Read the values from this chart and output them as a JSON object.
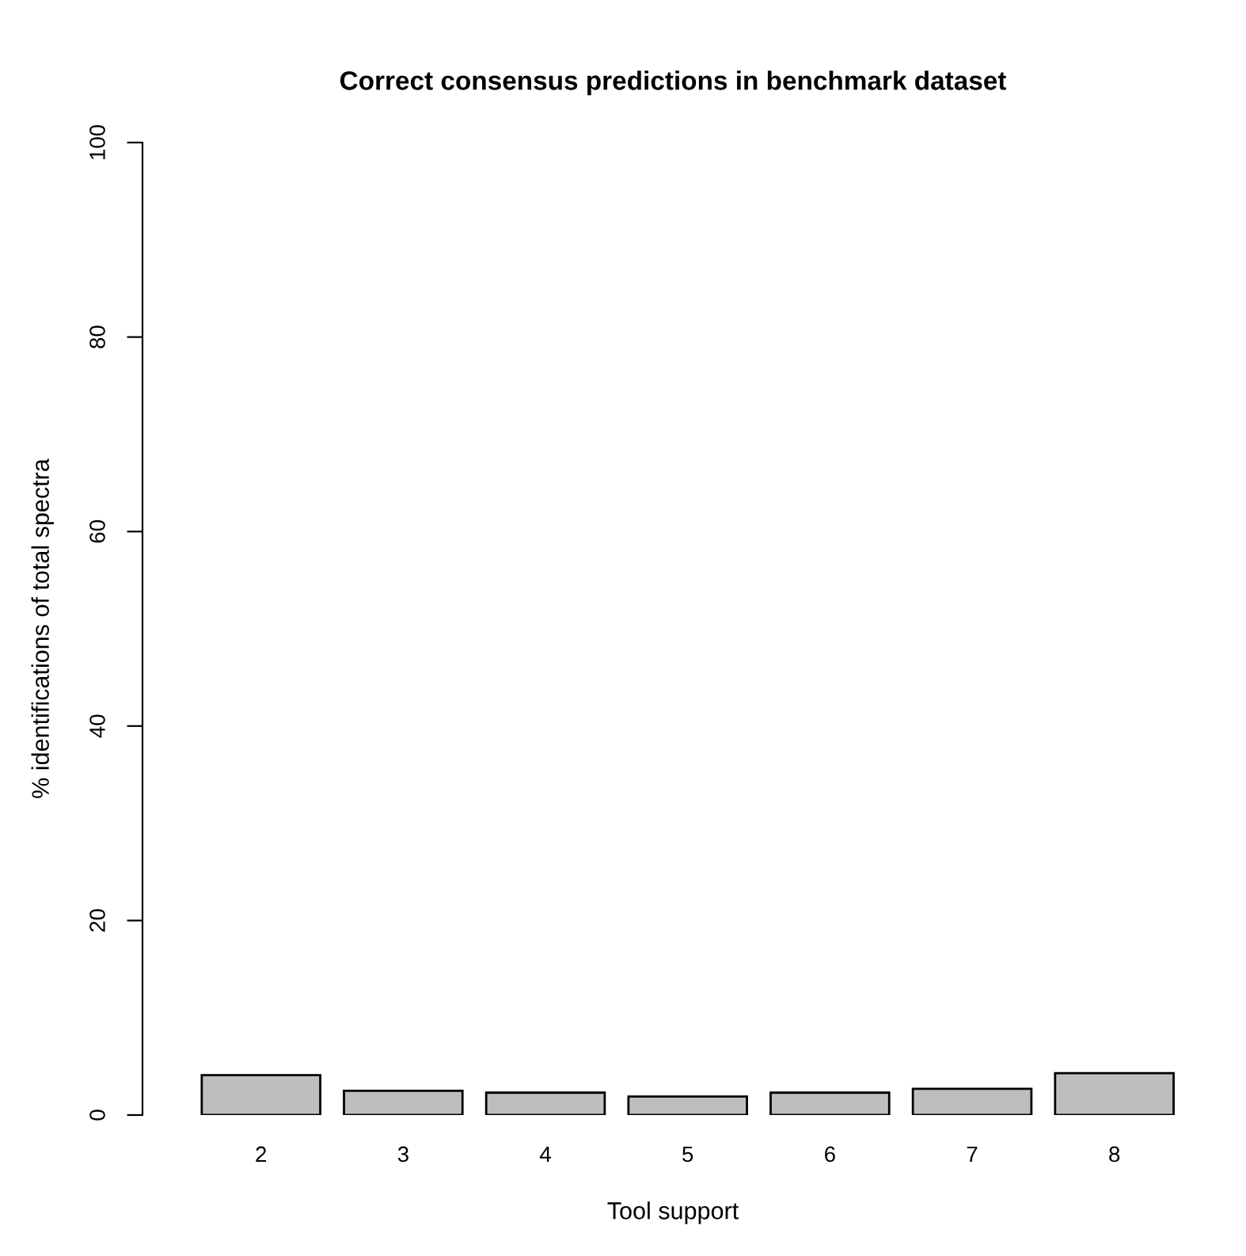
{
  "chart_data": {
    "type": "bar",
    "title": "Correct consensus predictions in benchmark dataset",
    "xlabel": "Tool support",
    "ylabel": "% identifications of total spectra",
    "categories": [
      "2",
      "3",
      "4",
      "5",
      "6",
      "7",
      "8"
    ],
    "values": [
      4.1,
      2.5,
      2.3,
      1.9,
      2.3,
      2.7,
      4.3
    ],
    "color": "#bebebe",
    "ylim": [
      0,
      100
    ],
    "yticks": [
      0,
      20,
      40,
      60,
      80,
      100
    ],
    "grid": false
  }
}
